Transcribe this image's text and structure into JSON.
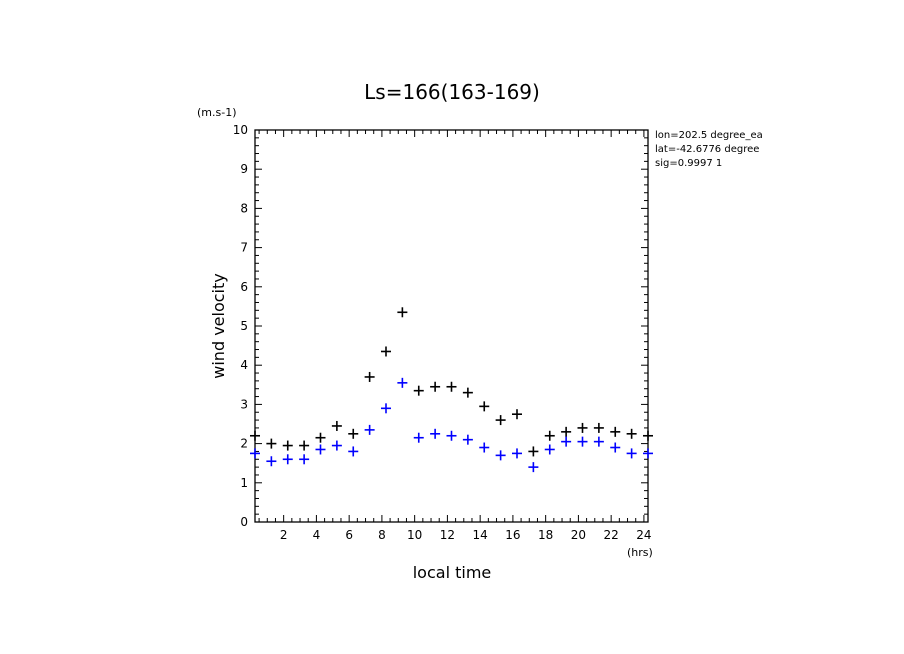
{
  "chart_data": {
    "type": "scatter",
    "title": "Ls=166(163-169)",
    "xlabel": "local time",
    "ylabel": "wind velocity",
    "x_unit": "(hrs)",
    "y_unit": "(m.s-1)",
    "xlim": [
      0.25,
      24.25
    ],
    "ylim": [
      0,
      10
    ],
    "x_ticks": [
      2,
      4,
      6,
      8,
      10,
      12,
      14,
      16,
      18,
      20,
      22,
      24
    ],
    "y_ticks": [
      0,
      1,
      2,
      3,
      4,
      5,
      6,
      7,
      8,
      9,
      10
    ],
    "grid": false,
    "info_text": [
      "lon=202.5 degree_ea",
      "lat=-42.6776 degree",
      "sig=0.9997 1"
    ],
    "x": [
      0.25,
      1.25,
      2.25,
      3.25,
      4.25,
      5.25,
      6.25,
      7.25,
      8.25,
      9.25,
      10.25,
      11.25,
      12.25,
      13.25,
      14.25,
      15.25,
      16.25,
      17.25,
      18.25,
      19.25,
      20.25,
      21.25,
      22.25,
      23.25,
      24.25
    ],
    "series": [
      {
        "color": "#000000",
        "values": [
          2.2,
          2.0,
          1.95,
          1.95,
          2.15,
          2.45,
          2.25,
          3.7,
          4.35,
          5.35,
          3.35,
          3.45,
          3.45,
          3.3,
          2.95,
          2.6,
          2.75,
          1.8,
          2.2,
          2.3,
          2.4,
          2.4,
          2.3,
          2.25,
          2.2
        ]
      },
      {
        "color": "#0000ff",
        "values": [
          1.75,
          1.55,
          1.6,
          1.6,
          1.85,
          1.95,
          1.8,
          2.35,
          2.9,
          3.55,
          2.15,
          2.25,
          2.2,
          2.1,
          1.9,
          1.7,
          1.75,
          1.4,
          1.85,
          2.05,
          2.05,
          2.05,
          1.9,
          1.75,
          1.75
        ]
      }
    ]
  }
}
